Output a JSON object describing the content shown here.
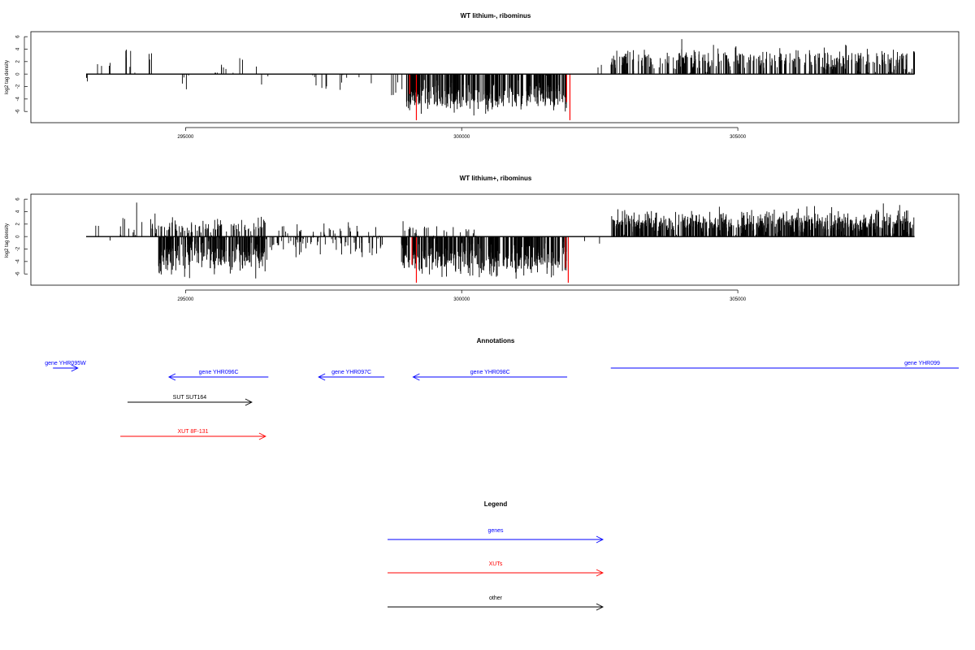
{
  "chart_data": [
    {
      "type": "bar",
      "title": "WT lithium-, ribominus",
      "ylabel": "log2 tag density",
      "xlim": [
        292200,
        309000
      ],
      "ylim": [
        -7.8,
        6.8
      ],
      "yticks": [
        -6,
        -4,
        -2,
        0,
        2,
        4,
        6
      ],
      "xticks": [
        295000,
        300000,
        305000
      ],
      "baseline_range": [
        293200,
        308200
      ],
      "grid": false,
      "series": [
        {
          "color": "#000000",
          "segments": [
            {
              "from": 293200,
              "to": 293300,
              "density": 0.3,
              "mean": -0.8,
              "sd": 0.4
            },
            {
              "from": 293300,
              "to": 293800,
              "density": 0.08,
              "mean": 1.6,
              "sd": 0.2
            },
            {
              "from": 293900,
              "to": 294500,
              "density": 0.15,
              "mean": 2.4,
              "sd": 1.2
            },
            {
              "from": 294600,
              "to": 295200,
              "density": 0.06,
              "mean": -1.5,
              "sd": 0.8
            },
            {
              "from": 295400,
              "to": 296300,
              "density": 0.12,
              "mean": 1.4,
              "sd": 1.6
            },
            {
              "from": 296300,
              "to": 296500,
              "density": 0.1,
              "mean": -1.2,
              "sd": 1.0
            },
            {
              "from": 297200,
              "to": 298700,
              "density": 0.08,
              "mean": -1.4,
              "sd": 1.0
            },
            {
              "from": 298600,
              "to": 299100,
              "density": 0.1,
              "mean": -2.2,
              "sd": 1.0
            },
            {
              "from": 299000,
              "to": 301900,
              "density": 1.3,
              "mean": -3.6,
              "sd": 1.2
            },
            {
              "from": 302300,
              "to": 302700,
              "density": 0.05,
              "mean": 2.0,
              "sd": 0.8
            },
            {
              "from": 302700,
              "to": 308200,
              "density": 0.7,
              "mean": 2.2,
              "sd": 1.1
            }
          ]
        },
        {
          "color": "#ff0000",
          "spikes": [
            {
              "x": 299180,
              "y": -7.4
            },
            {
              "x": 301960,
              "y": -7.4
            },
            {
              "x": 299060,
              "y": -3.2
            },
            {
              "x": 301900,
              "y": -4.5
            }
          ]
        }
      ],
      "seed": 11
    },
    {
      "type": "bar",
      "title": "WT lithium+, ribominus",
      "ylabel": "log2 tag density",
      "xlim": [
        292200,
        309000
      ],
      "ylim": [
        -7.8,
        6.8
      ],
      "yticks": [
        -6,
        -4,
        -2,
        0,
        2,
        4,
        6
      ],
      "xticks": [
        295000,
        300000,
        305000
      ],
      "baseline_range": [
        293200,
        308200
      ],
      "grid": false,
      "series": [
        {
          "color": "#000000",
          "segments": [
            {
              "from": 293350,
              "to": 293450,
              "density": 0.2,
              "mean": 1.8,
              "sd": 0.3
            },
            {
              "from": 293550,
              "to": 293650,
              "density": 0.1,
              "mean": -0.6,
              "sd": 0.3
            },
            {
              "from": 293800,
              "to": 294500,
              "density": 0.3,
              "mean": 1.6,
              "sd": 1.3
            },
            {
              "from": 294500,
              "to": 296500,
              "density": 1.3,
              "mean": -2.8,
              "sd": 1.5
            },
            {
              "from": 294500,
              "to": 296500,
              "density": 0.5,
              "mean": 1.3,
              "sd": 0.8
            },
            {
              "from": 296500,
              "to": 298600,
              "density": 0.35,
              "mean": -1.2,
              "sd": 1.1
            },
            {
              "from": 296500,
              "to": 298600,
              "density": 0.2,
              "mean": 1.0,
              "sd": 0.7
            },
            {
              "from": 298900,
              "to": 301900,
              "density": 1.4,
              "mean": -3.4,
              "sd": 1.4
            },
            {
              "from": 298900,
              "to": 300300,
              "density": 0.2,
              "mean": 1.0,
              "sd": 0.8
            },
            {
              "from": 302200,
              "to": 302500,
              "density": 0.08,
              "mean": -1.0,
              "sd": 0.5
            },
            {
              "from": 302700,
              "to": 308200,
              "density": 1.4,
              "mean": 2.0,
              "sd": 1.0
            }
          ]
        },
        {
          "color": "#ff0000",
          "spikes": [
            {
              "x": 299180,
              "y": -7.4
            },
            {
              "x": 301930,
              "y": -7.4
            },
            {
              "x": 299100,
              "y": -4.5
            },
            {
              "x": 301880,
              "y": -5.0
            }
          ]
        }
      ],
      "seed": 29
    }
  ],
  "annotations": {
    "title": "Annotations",
    "features": [
      {
        "label": "gene YHR095W",
        "start": 292600,
        "end": 293050,
        "color": "#0000ff",
        "dir": "right",
        "row": 0
      },
      {
        "label": "gene YHR096C",
        "start": 294700,
        "end": 296500,
        "color": "#0000ff",
        "dir": "left",
        "row": 1
      },
      {
        "label": "gene YHR097C",
        "start": 297410,
        "end": 298600,
        "color": "#0000ff",
        "dir": "left",
        "row": 1
      },
      {
        "label": "gene YHR098C",
        "start": 299120,
        "end": 301910,
        "color": "#0000ff",
        "dir": "left",
        "row": 1
      },
      {
        "label": "gene YHR099",
        "start": 302700,
        "end": 309000,
        "color": "#0000ff",
        "dir": "none",
        "row": 0
      },
      {
        "label": "SUT SUT164",
        "start": 293950,
        "end": 296200,
        "color": "#000000",
        "dir": "right",
        "row": 2
      },
      {
        "label": "XUT 8F-131",
        "start": 293820,
        "end": 296450,
        "color": "#ff0000",
        "dir": "right",
        "row": 3
      }
    ]
  },
  "legend": {
    "title": "Legend",
    "items": [
      {
        "label": "genes",
        "color": "#0000ff"
      },
      {
        "label": "XUTs",
        "color": "#ff0000"
      },
      {
        "label": "other",
        "color": "#000000"
      }
    ]
  }
}
